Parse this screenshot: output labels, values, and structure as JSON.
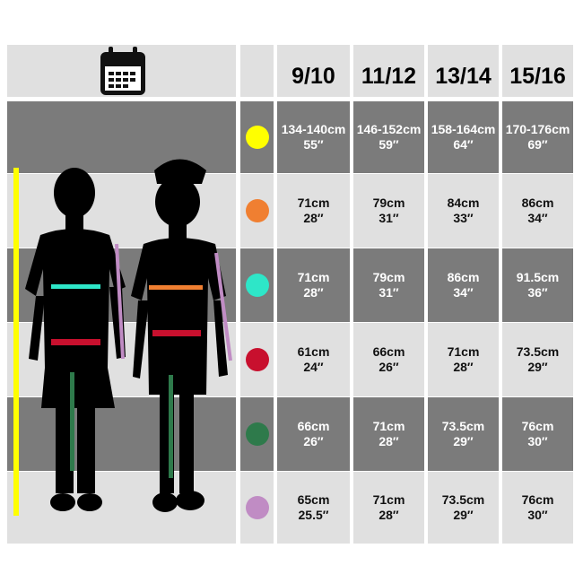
{
  "header": {
    "sizes": [
      "9/10",
      "11/12",
      "13/14",
      "15/16"
    ],
    "icon": "calendar-icon"
  },
  "rows": [
    {
      "measure_color": "#ffff00",
      "values": [
        [
          "134-140cm",
          "55″"
        ],
        [
          "146-152cm",
          "59″"
        ],
        [
          "158-164cm",
          "64″"
        ],
        [
          "170-176cm",
          "69″"
        ]
      ]
    },
    {
      "measure_color": "#f07f31",
      "values": [
        [
          "71cm",
          "28″"
        ],
        [
          "79cm",
          "31″"
        ],
        [
          "84cm",
          "33″"
        ],
        [
          "86cm",
          "34″"
        ]
      ]
    },
    {
      "measure_color": "#2ee6c8",
      "values": [
        [
          "71cm",
          "28″"
        ],
        [
          "79cm",
          "31″"
        ],
        [
          "86cm",
          "34″"
        ],
        [
          "91.5cm",
          "36″"
        ]
      ]
    },
    {
      "measure_color": "#c8102e",
      "values": [
        [
          "61cm",
          "24″"
        ],
        [
          "66cm",
          "26″"
        ],
        [
          "71cm",
          "28″"
        ],
        [
          "73.5cm",
          "29″"
        ]
      ]
    },
    {
      "measure_color": "#2e7a4b",
      "values": [
        [
          "66cm",
          "26″"
        ],
        [
          "71cm",
          "28″"
        ],
        [
          "73.5cm",
          "29″"
        ],
        [
          "76cm",
          "30″"
        ]
      ]
    },
    {
      "measure_color": "#c08cc4",
      "values": [
        [
          "65cm",
          "25.5″"
        ],
        [
          "71cm",
          "28″"
        ],
        [
          "73.5cm",
          "29″"
        ],
        [
          "76cm",
          "30″"
        ]
      ]
    }
  ],
  "colors": {
    "dark_row": "#7b7b7b",
    "light_row": "#e0e0e0"
  }
}
